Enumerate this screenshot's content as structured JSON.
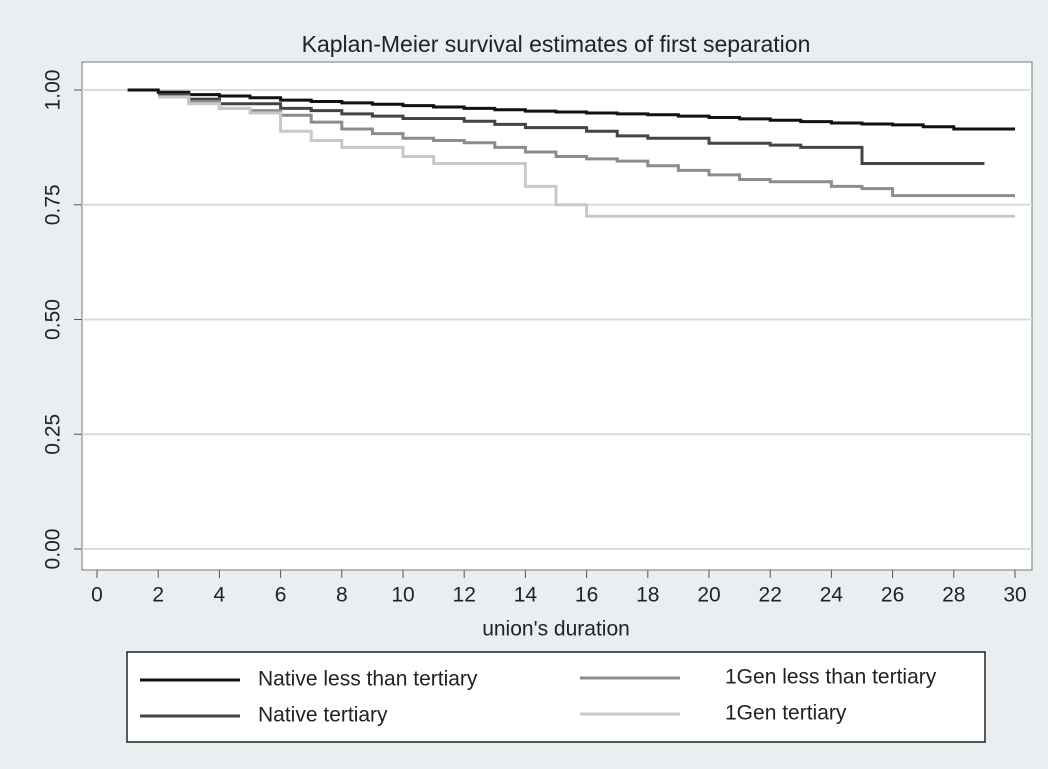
{
  "chart_data": {
    "type": "line",
    "step": true,
    "title": "Kaplan-Meier survival estimates of first separation",
    "x_label": "union's duration",
    "xlim": [
      0,
      30
    ],
    "xticks": [
      0,
      2,
      4,
      6,
      8,
      10,
      12,
      14,
      16,
      18,
      20,
      22,
      24,
      26,
      28,
      30
    ],
    "ylim": [
      0,
      1
    ],
    "yticks": [
      {
        "value": 0,
        "label": "0.00"
      },
      0.25,
      {
        "value": 0.5,
        "label": "0.50"
      },
      0.75,
      {
        "value": 1,
        "label": "1.00"
      }
    ],
    "grid": true,
    "legend": "bottom",
    "series": [
      {
        "name": "Native less than tertiary",
        "color": "#111111",
        "x": [
          1,
          2,
          3,
          4,
          5,
          6,
          7,
          8,
          9,
          10,
          11,
          12,
          13,
          14,
          15,
          16,
          17,
          18,
          19,
          20,
          21,
          22,
          23,
          24,
          25,
          26,
          27,
          28,
          30
        ],
        "values": [
          1.0,
          0.995,
          0.99,
          0.987,
          0.983,
          0.978,
          0.975,
          0.972,
          0.969,
          0.966,
          0.963,
          0.96,
          0.957,
          0.954,
          0.952,
          0.95,
          0.948,
          0.946,
          0.943,
          0.94,
          0.937,
          0.934,
          0.931,
          0.928,
          0.926,
          0.924,
          0.92,
          0.915,
          0.915
        ]
      },
      {
        "name": "Native tertiary",
        "color": "#444444",
        "x": [
          2,
          3,
          4,
          6,
          7,
          8,
          9,
          10,
          12,
          13,
          14,
          16,
          17,
          18,
          20,
          22,
          23,
          25,
          29
        ],
        "values": [
          0.99,
          0.98,
          0.97,
          0.96,
          0.955,
          0.948,
          0.943,
          0.938,
          0.932,
          0.925,
          0.918,
          0.91,
          0.9,
          0.895,
          0.884,
          0.88,
          0.875,
          0.84,
          0.84
        ]
      },
      {
        "name": "1Gen less than tertiary",
        "color": "#8c8c8c",
        "x": [
          2,
          3,
          4,
          5,
          6,
          7,
          8,
          9,
          10,
          11,
          12,
          13,
          14,
          15,
          16,
          17,
          18,
          19,
          20,
          21,
          22,
          24,
          25,
          26,
          30
        ],
        "values": [
          0.985,
          0.975,
          0.96,
          0.955,
          0.945,
          0.93,
          0.915,
          0.905,
          0.895,
          0.89,
          0.885,
          0.875,
          0.865,
          0.855,
          0.85,
          0.845,
          0.835,
          0.825,
          0.815,
          0.805,
          0.8,
          0.79,
          0.785,
          0.77,
          0.77
        ]
      },
      {
        "name": "1Gen tertiary",
        "color": "#c8c8c8",
        "x": [
          2,
          3,
          4,
          5,
          6,
          7,
          8,
          10,
          11,
          14,
          15,
          16,
          30
        ],
        "values": [
          0.985,
          0.97,
          0.96,
          0.95,
          0.91,
          0.89,
          0.875,
          0.855,
          0.84,
          0.79,
          0.75,
          0.725,
          0.725
        ]
      }
    ]
  }
}
